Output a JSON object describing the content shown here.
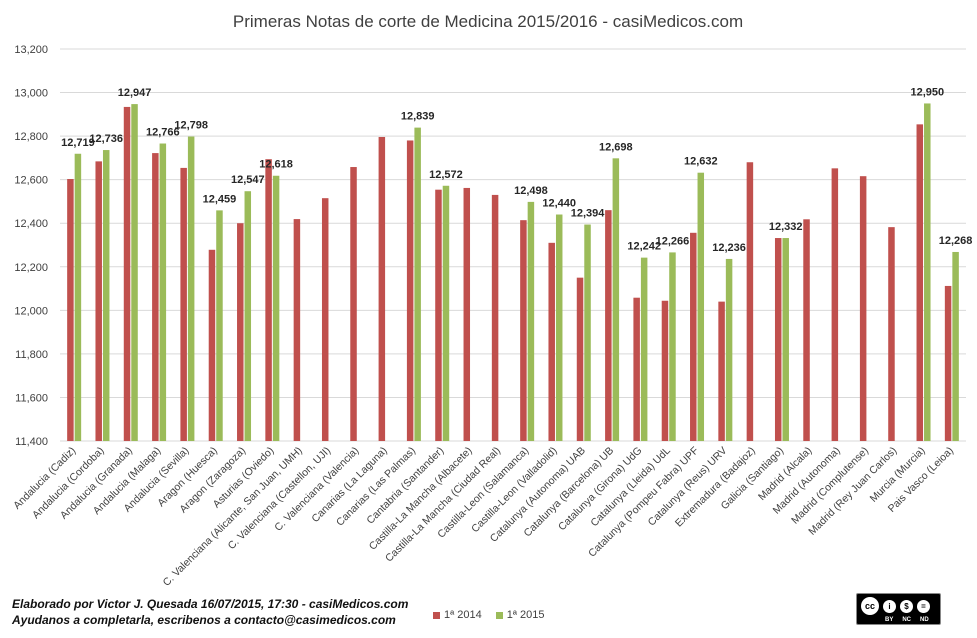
{
  "chart_data": {
    "type": "bar",
    "title": "Primeras Notas de corte de Medicina 2015/2016 - casiMedicos.com",
    "xlabel": "",
    "ylabel": "",
    "ylim": [
      11400,
      13200
    ],
    "yticks": [
      "11,400",
      "11,600",
      "11,800",
      "12,000",
      "12,200",
      "12,400",
      "12,600",
      "12,800",
      "13,000",
      "13,200"
    ],
    "grid": true,
    "legend_position": "bottom",
    "categories": [
      "Andalucia (Cadiz)",
      "Andalucia (Cordoba)",
      "Andalucia (Granada)",
      "Andalucia (Malaga)",
      "Andalucia (Sevilla)",
      "Aragon (Huesca)",
      "Aragon (Zaragoza)",
      "Asturias (Oviedo)",
      "C. Valenciana (Alicante, San Juan, UMH)",
      "C. Valenciana (Castellon, UJI)",
      "C. Valenciana (Valencia)",
      "Canarias (La Laguna)",
      "Canarias (Las Palmas)",
      "Cantabria (Santander)",
      "Castilla-La Mancha (Albacete)",
      "Castilla-La Mancha (Ciudad Real)",
      "Castilla-Leon (Salamanca)",
      "Castilla-Leon (Valladolid)",
      "Catalunya (Autonoma) UAB",
      "Catalunya (Barcelona) UB",
      "Catalunya (Girona) UdG",
      "Catalunya (Lleida) UdL",
      "Catalunya (Pompeu Fabra) UPF",
      "Catalunya (Reus) URV",
      "Extremadura (Badajoz)",
      "Galicia (Santiago)",
      "Madrid (Alcala)",
      "Madrid (Autonoma)",
      "Madrid (Complutense)",
      "Madrid (Rey Juan Carlos)",
      "Murcia (Murcia)",
      "Pais Vasco (Leioa)"
    ],
    "series": [
      {
        "name": "1ª 2014",
        "color": "#c0504d",
        "values": [
          12603,
          12684,
          12934,
          12722,
          12654,
          12278,
          12400,
          12694,
          12419,
          12515,
          12658,
          12796,
          12780,
          12554,
          12562,
          12530,
          12414,
          12310,
          12150,
          12460,
          12058,
          12044,
          12356,
          12040,
          12680,
          12332,
          12418,
          12652,
          12616,
          12382,
          12854,
          12112
        ]
      },
      {
        "name": "1ª 2015",
        "color": "#9bbb59",
        "values": [
          12719,
          12736,
          12947,
          12766,
          12798,
          12459,
          12547,
          12618,
          null,
          null,
          null,
          null,
          12839,
          12572,
          null,
          null,
          12498,
          12440,
          12394,
          12698,
          12242,
          12266,
          12632,
          12236,
          null,
          12332,
          null,
          null,
          null,
          null,
          12950,
          12268
        ]
      }
    ],
    "data_labels": [
      "12,719",
      "12,736",
      "12,947",
      "12,766",
      "12,798",
      "12,459",
      "12,547",
      "12,618",
      "",
      "",
      "",
      "",
      "12,839",
      "12,572",
      "",
      "",
      "12,498",
      "12,440",
      "12,394",
      "12,698",
      "12,242",
      "12,266",
      "12,632",
      "12,236",
      "",
      "12,332",
      "",
      "",
      "",
      "",
      "12,950",
      "12,268"
    ]
  },
  "footer": {
    "line1": "Elaborado por Victor J. Quesada  16/07/2015, 17:30 - casiMedicos.com",
    "line2": "Ayudanos a completarla,  escribenos  a contacto@casimedicos.com"
  },
  "legend": {
    "items": [
      "1ª 2014",
      "1ª 2015"
    ]
  },
  "license": {
    "badge": "cc",
    "by": "BY",
    "nc": "NC",
    "nd": "ND"
  }
}
